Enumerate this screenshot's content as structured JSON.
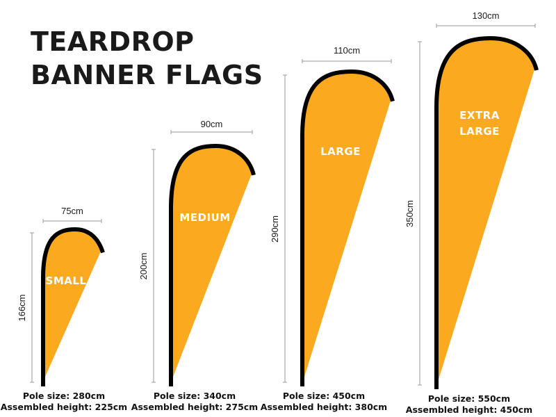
{
  "title": {
    "line1": "TEARDROP",
    "line2": "BANNER FLAGS"
  },
  "colors": {
    "flag": "#FBAA1F",
    "outline": "#000000",
    "dimension_line": "#999999",
    "text": "#1a1a1a"
  },
  "flags": [
    {
      "label_lines": [
        "SMALL"
      ],
      "width": "75cm",
      "height": "166cm",
      "pole": "Pole size: 280cm",
      "assembled": "Assembled height: 225cm"
    },
    {
      "label_lines": [
        "MEDIUM"
      ],
      "width": "90cm",
      "height": "200cm",
      "pole": "Pole size: 340cm",
      "assembled": "Assembled height: 275cm"
    },
    {
      "label_lines": [
        "LARGE"
      ],
      "width": "110cm",
      "height": "290cm",
      "pole": "Pole size: 450cm",
      "assembled": "Assembled height: 380cm"
    },
    {
      "label_lines": [
        "EXTRA",
        "LARGE"
      ],
      "width": "130cm",
      "height": "350cm",
      "pole": "Pole size: 550cm",
      "assembled": "Assembled height: 450cm"
    }
  ]
}
